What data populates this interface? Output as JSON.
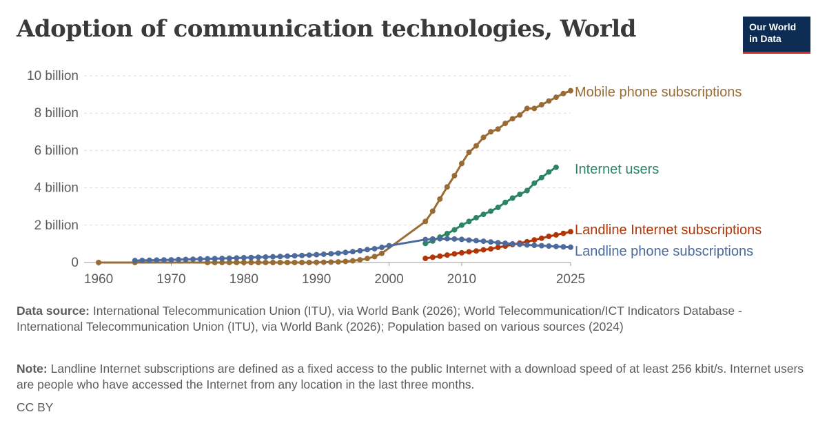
{
  "title": "Adoption of communication technologies, World",
  "logo": {
    "line1": "Our World",
    "line2": "in Data",
    "bg_color": "#0d2c54",
    "accent_color": "#d42b21"
  },
  "footer": {
    "source_label": "Data source:",
    "source_text": " International Telecommunication Union (ITU), via World Bank (2026); World Telecommunication/ICT Indicators Database - International Telecommunication Union (ITU), via World Bank (2026); Population based on various sources (2024)",
    "note_label": "Note:",
    "note_text": " Landline Internet subscriptions are defined as a fixed access to the public Internet with a download speed of at least 256 kbit/s. Internet users are people who have accessed the Internet from any location in the last three months.",
    "license": "CC BY"
  },
  "chart_data": {
    "type": "line",
    "title": "Adoption of communication technologies, World",
    "xlim": [
      1958,
      2025
    ],
    "ylim": [
      0,
      10000000000
    ],
    "x_ticks": [
      1960,
      1970,
      1980,
      1990,
      2000,
      2010,
      2025
    ],
    "x_tick_labels": [
      "1960",
      "1970",
      "1980",
      "1990",
      "2000",
      "2010",
      "2025"
    ],
    "y_ticks": [
      0,
      2000000000,
      4000000000,
      6000000000,
      8000000000,
      10000000000
    ],
    "y_tick_labels": [
      "0",
      "2 billion",
      "4 billion",
      "6 billion",
      "8 billion",
      "10 billion"
    ],
    "grid": "horizontal dashed",
    "legend": "end-of-line labels",
    "series": [
      {
        "name": "Mobile phone subscriptions",
        "color": "#9a6c35",
        "x": [
          1960,
          1965,
          1975,
          1976,
          1977,
          1978,
          1979,
          1980,
          1981,
          1982,
          1983,
          1984,
          1985,
          1986,
          1987,
          1988,
          1989,
          1990,
          1991,
          1992,
          1993,
          1994,
          1995,
          1996,
          1997,
          1998,
          1999,
          2005,
          2006,
          2007,
          2008,
          2009,
          2010,
          2011,
          2012,
          2013,
          2014,
          2015,
          2016,
          2017,
          2018,
          2019,
          2020,
          2021,
          2022,
          2023,
          2024,
          2025
        ],
        "y": [
          0,
          0,
          0,
          0,
          0,
          0,
          0,
          0,
          0,
          0,
          0,
          0,
          0,
          0,
          0,
          0,
          0,
          11000000,
          16000000,
          23000000,
          34000000,
          56000000,
          91000000,
          145000000,
          215000000,
          318000000,
          490000000,
          2200000000,
          2750000000,
          3400000000,
          4050000000,
          4650000000,
          5300000000,
          5900000000,
          6250000000,
          6700000000,
          7000000000,
          7150000000,
          7450000000,
          7700000000,
          7900000000,
          8250000000,
          8250000000,
          8450000000,
          8650000000,
          8850000000,
          9050000000,
          9200000000
        ]
      },
      {
        "name": "Internet users",
        "color": "#2c8465",
        "x": [
          2005,
          2006,
          2007,
          2008,
          2009,
          2010,
          2011,
          2012,
          2013,
          2014,
          2015,
          2016,
          2017,
          2018,
          2019,
          2020,
          2021,
          2022,
          2023
        ],
        "y": [
          1020000000,
          1150000000,
          1360000000,
          1550000000,
          1750000000,
          2000000000,
          2200000000,
          2400000000,
          2580000000,
          2750000000,
          2950000000,
          3220000000,
          3450000000,
          3650000000,
          3850000000,
          4250000000,
          4550000000,
          4850000000,
          5100000000
        ]
      },
      {
        "name": "Landline Internet subscriptions",
        "color": "#b13507",
        "x": [
          2005,
          2006,
          2007,
          2008,
          2009,
          2010,
          2011,
          2012,
          2013,
          2014,
          2015,
          2016,
          2017,
          2018,
          2019,
          2020,
          2021,
          2022,
          2023,
          2024,
          2025
        ],
        "y": [
          220000000,
          280000000,
          340000000,
          400000000,
          460000000,
          520000000,
          570000000,
          620000000,
          680000000,
          730000000,
          810000000,
          880000000,
          960000000,
          1040000000,
          1110000000,
          1210000000,
          1300000000,
          1400000000,
          1480000000,
          1560000000,
          1650000000
        ]
      },
      {
        "name": "Landline phone subscriptions",
        "color": "#4c6a9c",
        "x": [
          1965,
          1966,
          1967,
          1968,
          1969,
          1970,
          1971,
          1972,
          1973,
          1974,
          1975,
          1976,
          1977,
          1978,
          1979,
          1980,
          1981,
          1982,
          1983,
          1984,
          1985,
          1986,
          1987,
          1988,
          1989,
          1990,
          1991,
          1992,
          1993,
          1994,
          1995,
          1996,
          1997,
          1998,
          1999,
          2000,
          2005,
          2006,
          2007,
          2008,
          2009,
          2010,
          2011,
          2012,
          2013,
          2014,
          2015,
          2016,
          2017,
          2018,
          2019,
          2020,
          2021,
          2022,
          2023,
          2024,
          2025
        ],
        "y": [
          105000000,
          113000000,
          121000000,
          129000000,
          138000000,
          145000000,
          155000000,
          165000000,
          176000000,
          187000000,
          198000000,
          208000000,
          219000000,
          231000000,
          243000000,
          256000000,
          268000000,
          281000000,
          294000000,
          308000000,
          323000000,
          340000000,
          358000000,
          377000000,
          398000000,
          420000000,
          445000000,
          470000000,
          500000000,
          540000000,
          580000000,
          630000000,
          690000000,
          740000000,
          810000000,
          900000000,
          1230000000,
          1260000000,
          1270000000,
          1275000000,
          1260000000,
          1240000000,
          1200000000,
          1170000000,
          1140000000,
          1100000000,
          1060000000,
          1030000000,
          1000000000,
          970000000,
          940000000,
          920000000,
          900000000,
          880000000,
          860000000,
          840000000,
          820000000
        ]
      }
    ]
  }
}
